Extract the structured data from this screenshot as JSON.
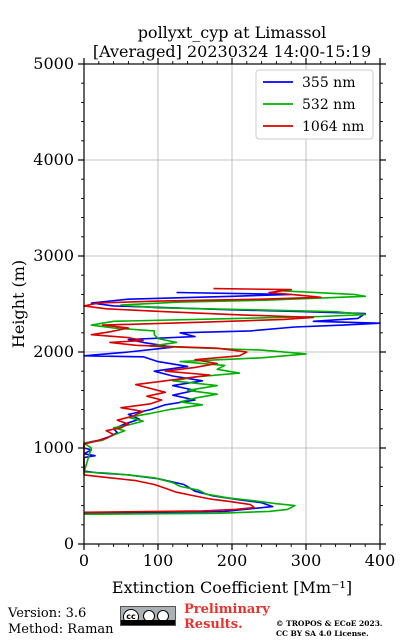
{
  "chart_data": {
    "type": "line",
    "title_line1": "pollyxt_cyp at Limassol",
    "title_line2": "[Averaged] 20230324 14:00-15:19",
    "xlabel": "Extinction Coefficient [Mm⁻¹]",
    "ylabel": "Height (m)",
    "xlim": [
      0,
      400
    ],
    "ylim": [
      0,
      5000
    ],
    "x_ticks": [
      "0",
      "100",
      "200",
      "300",
      "400"
    ],
    "y_ticks": [
      "0",
      "1000",
      "2000",
      "3000",
      "4000",
      "5000"
    ],
    "grid": true,
    "legend_position": "top-right",
    "series": [
      {
        "name": "355 nm",
        "color": "#0000ff",
        "points": [
          [
            0,
            320
          ],
          [
            190,
            340
          ],
          [
            255,
            390
          ],
          [
            240,
            430
          ],
          [
            210,
            460
          ],
          [
            175,
            500
          ],
          [
            150,
            550
          ],
          [
            135,
            620
          ],
          [
            100,
            680
          ],
          [
            60,
            720
          ],
          [
            20,
            740
          ],
          [
            0,
            760
          ],
          [
            0,
            900
          ],
          [
            15,
            920
          ],
          [
            0,
            940
          ],
          [
            5,
            960
          ],
          [
            10,
            980
          ],
          [
            0,
            1000
          ],
          [
            0,
            1050
          ],
          [
            20,
            1080
          ],
          [
            35,
            1120
          ],
          [
            45,
            1160
          ],
          [
            40,
            1200
          ],
          [
            55,
            1250
          ],
          [
            75,
            1300
          ],
          [
            60,
            1350
          ],
          [
            90,
            1400
          ],
          [
            110,
            1450
          ],
          [
            150,
            1500
          ],
          [
            120,
            1550
          ],
          [
            150,
            1600
          ],
          [
            120,
            1650
          ],
          [
            160,
            1700
          ],
          [
            120,
            1750
          ],
          [
            95,
            1800
          ],
          [
            140,
            1850
          ],
          [
            100,
            1900
          ],
          [
            80,
            1950
          ],
          [
            0,
            1960
          ],
          [
            60,
            2000
          ],
          [
            120,
            2050
          ],
          [
            80,
            2100
          ],
          [
            60,
            2130
          ],
          [
            150,
            2160
          ],
          [
            130,
            2200
          ],
          [
            225,
            2220
          ],
          [
            285,
            2260
          ],
          [
            350,
            2280
          ],
          [
            400,
            2300
          ],
          [
            310,
            2320
          ],
          [
            370,
            2350
          ],
          [
            380,
            2400
          ],
          [
            300,
            2420
          ],
          [
            200,
            2440
          ],
          [
            40,
            2480
          ],
          [
            10,
            2510
          ],
          [
            60,
            2550
          ],
          [
            200,
            2580
          ],
          [
            280,
            2600
          ],
          [
            125,
            2620
          ]
        ]
      },
      {
        "name": "532 nm",
        "color": "#00b000",
        "points": [
          [
            0,
            310
          ],
          [
            180,
            320
          ],
          [
            250,
            340
          ],
          [
            275,
            360
          ],
          [
            285,
            400
          ],
          [
            260,
            420
          ],
          [
            230,
            450
          ],
          [
            195,
            480
          ],
          [
            165,
            520
          ],
          [
            155,
            560
          ],
          [
            130,
            600
          ],
          [
            120,
            640
          ],
          [
            95,
            690
          ],
          [
            60,
            720
          ],
          [
            30,
            740
          ],
          [
            0,
            750
          ],
          [
            10,
            1000
          ],
          [
            0,
            1050
          ],
          [
            25,
            1080
          ],
          [
            35,
            1120
          ],
          [
            45,
            1150
          ],
          [
            55,
            1180
          ],
          [
            40,
            1210
          ],
          [
            60,
            1240
          ],
          [
            80,
            1280
          ],
          [
            60,
            1320
          ],
          [
            90,
            1360
          ],
          [
            115,
            1400
          ],
          [
            160,
            1450
          ],
          [
            130,
            1480
          ],
          [
            150,
            1520
          ],
          [
            180,
            1560
          ],
          [
            140,
            1600
          ],
          [
            180,
            1650
          ],
          [
            120,
            1700
          ],
          [
            150,
            1740
          ],
          [
            210,
            1780
          ],
          [
            180,
            1820
          ],
          [
            190,
            1860
          ],
          [
            130,
            1900
          ],
          [
            240,
            1940
          ],
          [
            300,
            1980
          ],
          [
            240,
            2020
          ],
          [
            90,
            2060
          ],
          [
            125,
            2100
          ],
          [
            100,
            2140
          ],
          [
            95,
            2180
          ],
          [
            95,
            2220
          ],
          [
            40,
            2250
          ],
          [
            10,
            2280
          ],
          [
            40,
            2320
          ],
          [
            320,
            2370
          ],
          [
            380,
            2390
          ],
          [
            340,
            2420
          ],
          [
            230,
            2440
          ],
          [
            100,
            2460
          ],
          [
            50,
            2490
          ],
          [
            130,
            2520
          ],
          [
            245,
            2540
          ],
          [
            380,
            2580
          ],
          [
            365,
            2600
          ],
          [
            260,
            2640
          ]
        ]
      },
      {
        "name": "1064 nm",
        "color": "#d80000",
        "points": [
          [
            0,
            330
          ],
          [
            160,
            345
          ],
          [
            205,
            360
          ],
          [
            230,
            380
          ],
          [
            225,
            410
          ],
          [
            200,
            440
          ],
          [
            170,
            470
          ],
          [
            150,
            500
          ],
          [
            125,
            540
          ],
          [
            110,
            580
          ],
          [
            95,
            620
          ],
          [
            70,
            660
          ],
          [
            35,
            690
          ],
          [
            0,
            720
          ],
          [
            0,
            1040
          ],
          [
            15,
            1070
          ],
          [
            30,
            1100
          ],
          [
            40,
            1140
          ],
          [
            30,
            1180
          ],
          [
            50,
            1210
          ],
          [
            60,
            1250
          ],
          [
            45,
            1290
          ],
          [
            65,
            1330
          ],
          [
            80,
            1380
          ],
          [
            50,
            1420
          ],
          [
            90,
            1460
          ],
          [
            105,
            1500
          ],
          [
            85,
            1540
          ],
          [
            110,
            1580
          ],
          [
            90,
            1620
          ],
          [
            70,
            1660
          ],
          [
            110,
            1700
          ],
          [
            140,
            1730
          ],
          [
            170,
            1760
          ],
          [
            110,
            1800
          ],
          [
            150,
            1840
          ],
          [
            180,
            1880
          ],
          [
            150,
            1920
          ],
          [
            210,
            1960
          ],
          [
            220,
            2000
          ],
          [
            180,
            2040
          ],
          [
            70,
            2070
          ],
          [
            35,
            2100
          ],
          [
            80,
            2120
          ],
          [
            60,
            2150
          ],
          [
            10,
            2180
          ],
          [
            35,
            2210
          ],
          [
            60,
            2250
          ],
          [
            25,
            2280
          ],
          [
            160,
            2310
          ],
          [
            270,
            2340
          ],
          [
            310,
            2360
          ],
          [
            200,
            2390
          ],
          [
            110,
            2420
          ],
          [
            30,
            2450
          ],
          [
            0,
            2480
          ],
          [
            20,
            2510
          ],
          [
            100,
            2530
          ],
          [
            240,
            2550
          ],
          [
            320,
            2570
          ],
          [
            295,
            2590
          ],
          [
            250,
            2620
          ],
          [
            280,
            2650
          ],
          [
            175,
            2660
          ]
        ]
      }
    ]
  },
  "footer": {
    "version": "Version: 3.6",
    "method": "Method: Raman",
    "license_badge": "cc-by-sa-badge",
    "preliminary_line1": "Preliminary",
    "preliminary_line2": "Results.",
    "copyright_line1": "© TROPOS & ECoE 2023.",
    "copyright_line2": "CC BY SA 4.0 License."
  }
}
